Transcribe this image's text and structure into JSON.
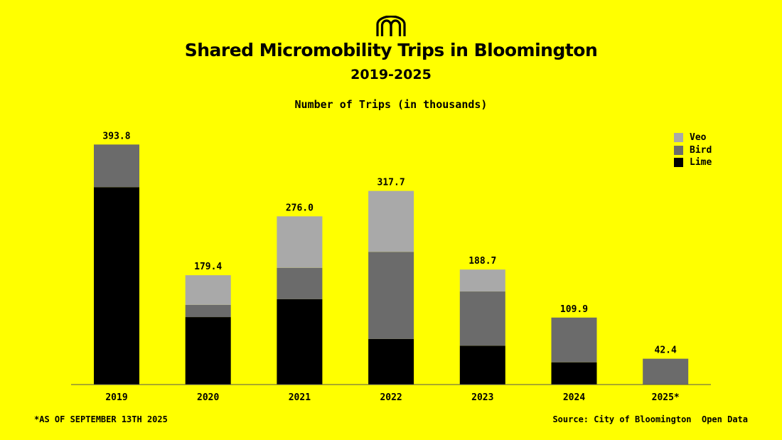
{
  "header": {
    "logo_icon": "m-arches-logo-icon",
    "title": "Shared Micromobility Trips in Bloomington",
    "subtitle": "2019-2025"
  },
  "footer": {
    "footnote": "*AS OF SEPTEMBER 13TH 2025",
    "source": "Source: City of Bloomington  Open Data"
  },
  "colors": {
    "background": "#ffff00",
    "veo": "#a9a9a9",
    "bird": "#6b6b6b",
    "lime": "#000000",
    "axis": "#555555"
  },
  "chart_data": {
    "type": "bar",
    "stacked": true,
    "title": "Number of Trips (in thousands)",
    "xlabel": "",
    "ylabel": "",
    "ylim": [
      0,
      400
    ],
    "grid": false,
    "legend_position": "top-right",
    "categories": [
      "2019",
      "2020",
      "2021",
      "2022",
      "2023",
      "2024",
      "2025*"
    ],
    "series": [
      {
        "name": "Lime",
        "color": "#000000",
        "values": [
          323.8,
          110.7,
          140.0,
          74.7,
          63.7,
          36.5,
          0
        ]
      },
      {
        "name": "Bird",
        "color": "#6b6b6b",
        "values": [
          70.0,
          20.0,
          51.5,
          143.0,
          89.0,
          73.4,
          42.4
        ]
      },
      {
        "name": "Veo",
        "color": "#a9a9a9",
        "values": [
          0,
          48.7,
          84.5,
          100.0,
          36.0,
          0,
          0
        ]
      }
    ],
    "totals": [
      "393.8",
      "179.4",
      "276.0",
      "317.7",
      "188.7",
      "109.9",
      "42.4"
    ],
    "legend": [
      "Veo",
      "Bird",
      "Lime"
    ]
  }
}
